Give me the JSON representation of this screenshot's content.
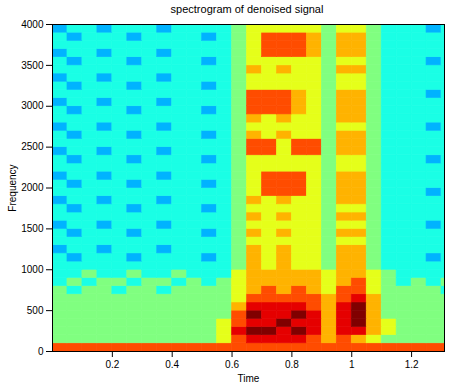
{
  "chart_data": {
    "type": "heatmap",
    "title": "spectrogram of denoised signal",
    "x_label": "Time",
    "y_label": "Frequency",
    "xlim": [
      0,
      1.31
    ],
    "ylim": [
      0,
      4000
    ],
    "xticks": [
      0.2,
      0.4,
      0.6,
      0.8,
      1,
      1.2
    ],
    "yticks": [
      0,
      500,
      1000,
      1500,
      2000,
      2500,
      3000,
      3500,
      4000
    ],
    "color_range": [
      0,
      10
    ],
    "grid": false,
    "x": [
      0.025,
      0.075,
      0.125,
      0.175,
      0.225,
      0.275,
      0.325,
      0.375,
      0.425,
      0.475,
      0.525,
      0.575,
      0.625,
      0.675,
      0.725,
      0.775,
      0.825,
      0.875,
      0.925,
      0.975,
      1.025,
      1.075,
      1.125,
      1.175,
      1.225,
      1.275,
      1.325
    ],
    "y": [
      50,
      150,
      250,
      350,
      450,
      550,
      650,
      750,
      850,
      950,
      1050,
      1150,
      1250,
      1350,
      1450,
      1550,
      1650,
      1750,
      1850,
      1950,
      2050,
      2150,
      2250,
      2350,
      2450,
      2550,
      2650,
      2750,
      2850,
      2950,
      3050,
      3150,
      3250,
      3350,
      3450,
      3550,
      3650,
      3750,
      3850,
      3950
    ],
    "cells": [
      [
        8,
        8,
        8,
        8,
        8,
        8,
        8,
        8,
        8,
        8,
        8,
        8,
        8,
        8,
        8,
        8,
        8,
        8,
        8,
        8,
        8,
        8,
        8,
        8,
        8,
        8,
        8
      ],
      [
        5,
        5,
        5,
        5,
        5,
        5,
        5,
        5,
        5,
        5,
        5,
        6,
        8,
        9,
        9,
        9,
        9,
        8,
        7,
        8,
        7,
        6,
        5,
        5,
        5,
        5,
        5
      ],
      [
        5,
        5,
        5,
        5,
        5,
        5,
        5,
        5,
        5,
        5,
        5,
        6,
        9,
        10,
        10,
        9,
        10,
        9,
        7,
        9,
        9,
        7,
        6,
        5,
        5,
        5,
        5
      ],
      [
        5,
        5,
        5,
        5,
        5,
        5,
        5,
        5,
        5,
        5,
        5,
        6,
        8,
        9,
        9,
        10,
        9,
        9,
        7,
        9,
        10,
        7,
        6,
        5,
        5,
        5,
        5
      ],
      [
        5,
        5,
        5,
        5,
        5,
        5,
        5,
        5,
        5,
        5,
        5,
        5,
        8,
        10,
        9,
        9,
        10,
        9,
        7,
        9,
        10,
        7,
        5,
        5,
        5,
        5,
        5
      ],
      [
        5,
        5,
        5,
        5,
        5,
        5,
        5,
        5,
        5,
        5,
        5,
        5,
        7,
        9,
        9,
        9,
        9,
        8,
        7,
        9,
        10,
        7,
        5,
        5,
        5,
        5,
        5
      ],
      [
        5,
        5,
        5,
        5,
        5,
        5,
        5,
        5,
        5,
        5,
        5,
        5,
        6,
        8,
        8,
        8,
        8,
        8,
        7,
        8,
        9,
        7,
        5,
        5,
        5,
        5,
        5
      ],
      [
        5,
        4,
        5,
        5,
        4,
        5,
        5,
        4,
        5,
        5,
        5,
        5,
        6,
        7,
        8,
        7,
        8,
        7,
        6,
        8,
        8,
        6,
        5,
        5,
        5,
        5,
        4
      ],
      [
        4,
        5,
        4,
        5,
        5,
        4,
        5,
        5,
        4,
        5,
        4,
        5,
        6,
        7,
        7,
        7,
        7,
        7,
        6,
        7,
        8,
        6,
        5,
        4,
        5,
        4,
        5
      ],
      [
        4,
        4,
        5,
        4,
        4,
        5,
        4,
        4,
        5,
        4,
        4,
        4,
        6,
        7,
        7,
        7,
        7,
        7,
        6,
        7,
        7,
        6,
        5,
        4,
        4,
        4,
        4
      ],
      [
        4,
        4,
        4,
        4,
        4,
        4,
        4,
        4,
        4,
        4,
        4,
        4,
        5,
        7,
        6,
        7,
        6,
        6,
        5,
        7,
        7,
        5,
        4,
        4,
        4,
        4,
        4
      ],
      [
        4,
        3,
        4,
        4,
        4,
        3,
        4,
        4,
        4,
        4,
        3,
        4,
        5,
        7,
        6,
        7,
        6,
        6,
        5,
        7,
        7,
        5,
        4,
        4,
        4,
        3,
        4
      ],
      [
        3,
        4,
        4,
        3,
        4,
        4,
        4,
        3,
        4,
        4,
        4,
        4,
        5,
        7,
        6,
        7,
        6,
        6,
        5,
        7,
        7,
        5,
        4,
        4,
        4,
        4,
        4
      ],
      [
        4,
        4,
        4,
        4,
        4,
        4,
        4,
        4,
        4,
        4,
        4,
        4,
        5,
        6,
        6,
        6,
        6,
        6,
        5,
        6,
        6,
        5,
        4,
        4,
        4,
        4,
        4
      ],
      [
        4,
        3,
        4,
        4,
        4,
        3,
        4,
        4,
        4,
        4,
        3,
        4,
        5,
        7,
        6,
        7,
        6,
        6,
        5,
        7,
        7,
        5,
        4,
        4,
        4,
        4,
        4
      ],
      [
        3,
        4,
        4,
        3,
        4,
        4,
        4,
        3,
        4,
        4,
        4,
        4,
        5,
        6,
        6,
        6,
        6,
        6,
        5,
        6,
        6,
        5,
        4,
        4,
        4,
        3,
        4
      ],
      [
        4,
        4,
        4,
        4,
        4,
        4,
        4,
        4,
        4,
        4,
        4,
        4,
        5,
        7,
        6,
        7,
        6,
        6,
        5,
        7,
        7,
        5,
        4,
        4,
        4,
        4,
        4
      ],
      [
        4,
        3,
        4,
        4,
        4,
        3,
        4,
        4,
        4,
        4,
        3,
        4,
        5,
        6,
        6,
        6,
        6,
        6,
        5,
        6,
        6,
        5,
        4,
        4,
        4,
        4,
        4
      ],
      [
        3,
        4,
        4,
        3,
        4,
        4,
        4,
        3,
        4,
        4,
        4,
        4,
        5,
        7,
        6,
        7,
        6,
        6,
        5,
        7,
        7,
        5,
        4,
        4,
        4,
        4,
        4
      ],
      [
        4,
        4,
        4,
        4,
        4,
        4,
        4,
        4,
        4,
        4,
        4,
        4,
        5,
        6,
        8,
        8,
        8,
        6,
        5,
        7,
        7,
        5,
        4,
        4,
        4,
        3,
        4
      ],
      [
        4,
        3,
        4,
        4,
        4,
        3,
        4,
        4,
        4,
        4,
        3,
        4,
        5,
        6,
        8,
        8,
        8,
        6,
        5,
        7,
        7,
        5,
        4,
        4,
        4,
        4,
        4
      ],
      [
        3,
        4,
        4,
        3,
        4,
        4,
        4,
        3,
        4,
        4,
        4,
        4,
        5,
        6,
        8,
        8,
        8,
        6,
        5,
        7,
        7,
        5,
        4,
        4,
        4,
        4,
        4
      ],
      [
        4,
        4,
        4,
        4,
        4,
        4,
        4,
        4,
        4,
        4,
        4,
        4,
        5,
        6,
        6,
        6,
        6,
        6,
        5,
        6,
        6,
        5,
        4,
        4,
        4,
        4,
        4
      ],
      [
        4,
        3,
        4,
        4,
        4,
        3,
        4,
        4,
        4,
        4,
        3,
        4,
        5,
        6,
        6,
        6,
        6,
        6,
        5,
        6,
        6,
        5,
        4,
        4,
        4,
        3,
        4
      ],
      [
        3,
        4,
        4,
        3,
        4,
        4,
        4,
        3,
        4,
        4,
        4,
        4,
        5,
        8,
        8,
        6,
        8,
        8,
        5,
        7,
        7,
        5,
        4,
        4,
        4,
        4,
        4
      ],
      [
        4,
        4,
        4,
        4,
        4,
        4,
        4,
        4,
        4,
        4,
        4,
        4,
        5,
        8,
        8,
        6,
        8,
        8,
        5,
        7,
        7,
        5,
        4,
        4,
        4,
        4,
        4
      ],
      [
        4,
        3,
        4,
        4,
        4,
        3,
        4,
        4,
        4,
        4,
        3,
        4,
        5,
        7,
        6,
        7,
        6,
        6,
        5,
        7,
        7,
        5,
        4,
        4,
        4,
        4,
        4
      ],
      [
        3,
        4,
        4,
        3,
        4,
        4,
        4,
        3,
        4,
        4,
        4,
        4,
        5,
        6,
        6,
        6,
        6,
        6,
        5,
        6,
        6,
        5,
        4,
        4,
        4,
        3,
        4
      ],
      [
        4,
        4,
        4,
        4,
        4,
        4,
        4,
        4,
        4,
        4,
        4,
        4,
        5,
        7,
        6,
        7,
        6,
        6,
        5,
        7,
        7,
        5,
        4,
        4,
        4,
        4,
        4
      ],
      [
        4,
        3,
        4,
        4,
        4,
        3,
        4,
        4,
        4,
        4,
        3,
        4,
        5,
        8,
        8,
        8,
        7,
        6,
        5,
        7,
        7,
        5,
        4,
        4,
        4,
        4,
        4
      ],
      [
        3,
        4,
        4,
        3,
        4,
        4,
        4,
        3,
        4,
        4,
        4,
        4,
        5,
        8,
        8,
        8,
        7,
        6,
        5,
        7,
        7,
        5,
        4,
        4,
        4,
        4,
        4
      ],
      [
        4,
        4,
        4,
        4,
        4,
        4,
        4,
        4,
        4,
        4,
        4,
        4,
        5,
        8,
        8,
        8,
        7,
        6,
        5,
        7,
        7,
        5,
        4,
        4,
        4,
        3,
        4
      ],
      [
        4,
        3,
        4,
        4,
        4,
        3,
        4,
        4,
        4,
        4,
        3,
        4,
        5,
        6,
        6,
        6,
        6,
        6,
        5,
        6,
        6,
        5,
        4,
        4,
        4,
        4,
        4
      ],
      [
        3,
        4,
        4,
        3,
        4,
        4,
        4,
        3,
        4,
        4,
        4,
        4,
        5,
        6,
        6,
        6,
        6,
        6,
        5,
        6,
        6,
        5,
        4,
        4,
        4,
        4,
        4
      ],
      [
        4,
        4,
        4,
        4,
        4,
        4,
        4,
        4,
        4,
        4,
        4,
        4,
        5,
        7,
        6,
        7,
        6,
        6,
        5,
        7,
        7,
        5,
        4,
        4,
        4,
        4,
        4
      ],
      [
        4,
        3,
        4,
        4,
        4,
        3,
        4,
        4,
        4,
        4,
        3,
        4,
        5,
        6,
        6,
        6,
        6,
        6,
        5,
        6,
        6,
        5,
        4,
        4,
        4,
        3,
        4
      ],
      [
        3,
        4,
        4,
        3,
        4,
        4,
        4,
        3,
        4,
        4,
        4,
        4,
        5,
        6,
        8,
        8,
        8,
        7,
        5,
        7,
        7,
        5,
        4,
        4,
        4,
        4,
        4
      ],
      [
        4,
        4,
        4,
        4,
        4,
        4,
        4,
        4,
        4,
        4,
        4,
        4,
        5,
        6,
        8,
        8,
        8,
        7,
        5,
        7,
        7,
        5,
        4,
        4,
        4,
        4,
        4
      ],
      [
        4,
        3,
        4,
        4,
        4,
        3,
        4,
        4,
        4,
        4,
        3,
        4,
        5,
        6,
        8,
        8,
        8,
        7,
        5,
        7,
        7,
        5,
        4,
        4,
        4,
        4,
        4
      ],
      [
        3,
        4,
        4,
        3,
        4,
        4,
        4,
        3,
        4,
        4,
        4,
        4,
        5,
        6,
        6,
        6,
        6,
        6,
        5,
        6,
        6,
        5,
        4,
        4,
        4,
        3,
        4
      ]
    ]
  }
}
